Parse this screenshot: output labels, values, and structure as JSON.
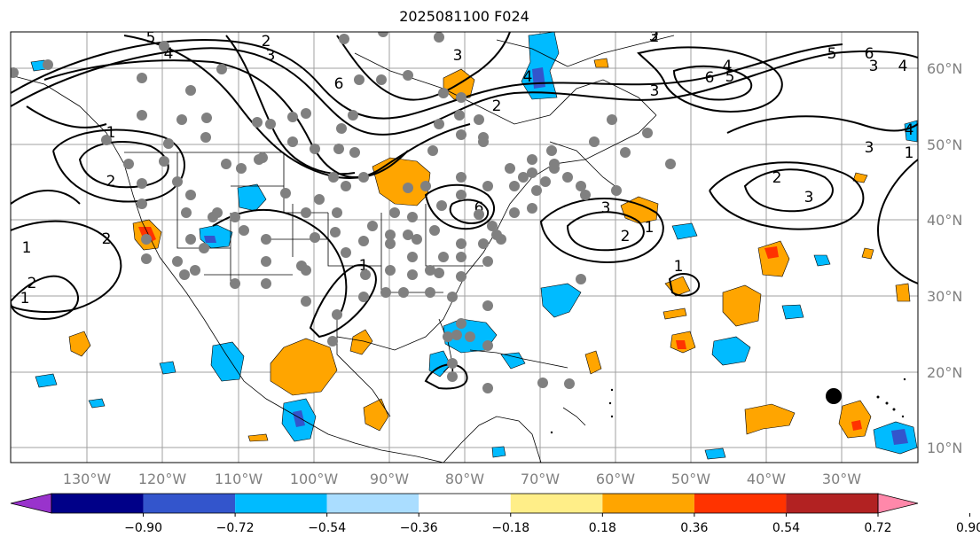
{
  "title": "2025081100 F024",
  "lon_labels": [
    "130°W",
    "120°W",
    "110°W",
    "100°W",
    "90°W",
    "80°W",
    "70°W",
    "60°W",
    "50°W",
    "40°W",
    "30°W"
  ],
  "lat_labels": [
    "60°N",
    "50°N",
    "40°N",
    "30°N",
    "20°N",
    "10°N"
  ],
  "colorbar": {
    "tick_labels": [
      "−0.90",
      "−0.72",
      "−0.54",
      "−0.36",
      "−0.18",
      "0.18",
      "0.36",
      "0.54",
      "0.72",
      "0.90"
    ],
    "colors": [
      "#9933cc",
      "#000088",
      "#3355cc",
      "#00bbff",
      "#aaddff",
      "#ffffff",
      "#ffee88",
      "#ffa500",
      "#ff3300",
      "#b22222",
      "#ff88aa"
    ]
  },
  "contour_labels": [
    "5",
    "4",
    "2",
    "3",
    "6",
    "3",
    "2",
    "6",
    "3",
    "4",
    "2",
    "1",
    "2",
    "1",
    "3",
    "5",
    "6",
    "3",
    "4",
    "2",
    "1",
    "3",
    "1",
    "2",
    "3",
    "4",
    "1",
    "6",
    "5",
    "4",
    "3",
    "2",
    "1",
    "1",
    "2",
    "1"
  ],
  "colors": {
    "positive_fill": "#ffa500",
    "strong_positive_fill": "#ff3300",
    "negative_fill": "#00bbff",
    "strong_negative_fill": "#3355cc",
    "station_marker": "#808080",
    "storm_marker": "#000000"
  }
}
